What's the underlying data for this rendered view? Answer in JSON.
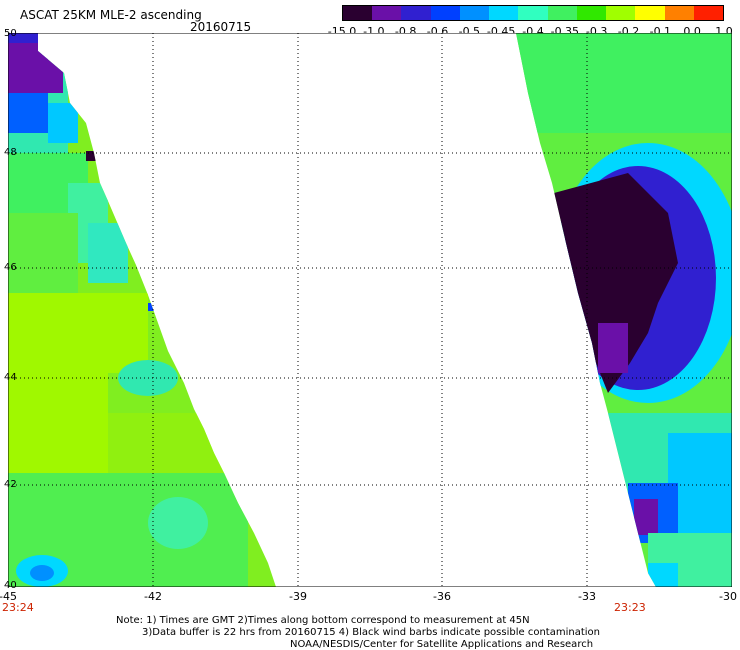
{
  "header": {
    "title": "ASCAT 25KM MLE-2 ascending",
    "date": "20160715"
  },
  "colorbar": {
    "labels": [
      "-15.0",
      "-1.0",
      "-0.8",
      "-0.6",
      "-0.5",
      "-0.45",
      "-0.4",
      "-0.35",
      "-0.3",
      "-0.2",
      "-0.1",
      "0.0",
      "1.0"
    ],
    "colors": [
      "#2a0030",
      "#6a10a8",
      "#3020d0",
      "#0040ff",
      "#0090ff",
      "#00d8ff",
      "#30ffc0",
      "#40f060",
      "#30e800",
      "#a0ff00",
      "#ffff00",
      "#ff8000",
      "#ff2000"
    ]
  },
  "map": {
    "x_ticks": [
      "-45",
      "-42",
      "-39",
      "-36",
      "-33",
      "-30"
    ],
    "y_ticks": [
      "50",
      "48",
      "46",
      "44",
      "42",
      "40"
    ],
    "lon_range": [
      -45,
      -30
    ],
    "lat_range": [
      40,
      50
    ]
  },
  "times": {
    "left": "23:24",
    "right": "23:23"
  },
  "notes": {
    "line1": "Note: 1) Times are GMT 2)Times along bottom correspond to measurement at 45N",
    "line2": "3)Data buffer is 22 hrs from 20160715 4) Black wind barbs indicate possible contamination",
    "line3": "NOAA/NESDIS/Center for Satellite Applications and Research"
  }
}
